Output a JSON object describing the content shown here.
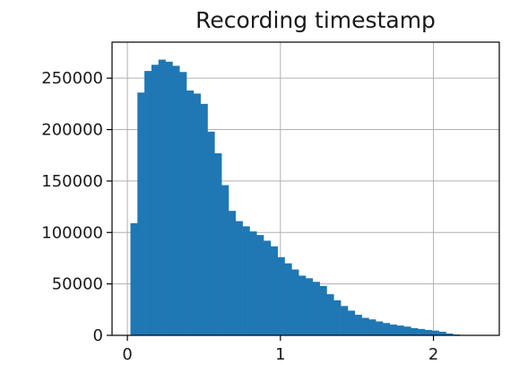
{
  "chart_data": {
    "type": "histogram",
    "title": "Recording timestamp",
    "xlabel": "",
    "ylabel": "",
    "xlim": [
      -0.1,
      2.43
    ],
    "ylim": [
      0,
      285000
    ],
    "grid": true,
    "bar_color": "#1f77b4",
    "x_ticks": [
      {
        "value": 0,
        "label": "0"
      },
      {
        "value": 1,
        "label": "1"
      },
      {
        "value": 2,
        "label": "2"
      }
    ],
    "y_ticks": [
      {
        "value": 0,
        "label": "0"
      },
      {
        "value": 50000,
        "label": "50000"
      },
      {
        "value": 100000,
        "label": "100000"
      },
      {
        "value": 150000,
        "label": "150000"
      },
      {
        "value": 200000,
        "label": "200000"
      },
      {
        "value": 250000,
        "label": "250000"
      }
    ],
    "bin_start": 0.02,
    "bin_width": 0.0458,
    "values": [
      109000,
      236000,
      257000,
      263000,
      268000,
      266000,
      262000,
      256000,
      238000,
      235000,
      225000,
      198000,
      177000,
      146000,
      121000,
      111000,
      106000,
      101000,
      97500,
      92000,
      86500,
      76000,
      70000,
      64000,
      58000,
      55500,
      52000,
      48000,
      40000,
      34000,
      28500,
      24000,
      20000,
      17000,
      15500,
      13500,
      12000,
      10500,
      9500,
      8500,
      7000,
      6200,
      5200,
      4600,
      3500,
      1800,
      800,
      300,
      100,
      20
    ]
  }
}
